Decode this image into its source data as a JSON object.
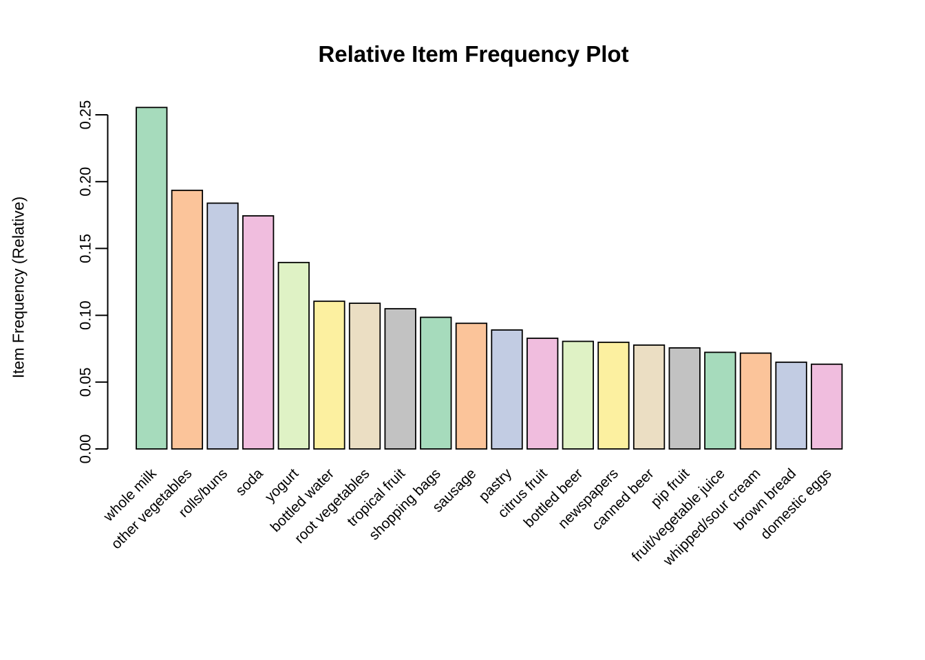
{
  "chart_data": {
    "type": "bar",
    "title": "Relative Item Frequency Plot",
    "xlabel": "",
    "ylabel": "Item Frequency (Relative)",
    "categories": [
      "whole milk",
      "other vegetables",
      "rolls/buns",
      "soda",
      "yogurt",
      "bottled water",
      "root vegetables",
      "tropical fruit",
      "shopping bags",
      "sausage",
      "pastry",
      "citrus fruit",
      "bottled beer",
      "newspapers",
      "canned beer",
      "pip fruit",
      "fruit/vegetable juice",
      "whipped/sour cream",
      "brown bread",
      "domestic eggs"
    ],
    "values": [
      0.2555,
      0.1935,
      0.1839,
      0.1744,
      0.1395,
      0.1105,
      0.109,
      0.1049,
      0.0985,
      0.094,
      0.089,
      0.0828,
      0.0805,
      0.0798,
      0.0777,
      0.0756,
      0.0723,
      0.0717,
      0.0649,
      0.0634
    ],
    "ylim": [
      0,
      0.25
    ],
    "ytick_labels": [
      "0.00",
      "0.05",
      "0.10",
      "0.15",
      "0.20",
      "0.25"
    ],
    "ytick_values": [
      0.0,
      0.05,
      0.1,
      0.15,
      0.2,
      0.25
    ],
    "grid": false,
    "legend": "none",
    "bar_palette": [
      "#A6DBBC",
      "#FBC49A",
      "#C2CCE3",
      "#F0BDDE",
      "#DFF2C5",
      "#FCF0A0",
      "#EBDEC3",
      "#C2C2C2"
    ],
    "bar_border_color": "#000000",
    "background_color": "#FFFFFF",
    "text_color": "#000000",
    "x_label_rotation_deg": 45
  }
}
